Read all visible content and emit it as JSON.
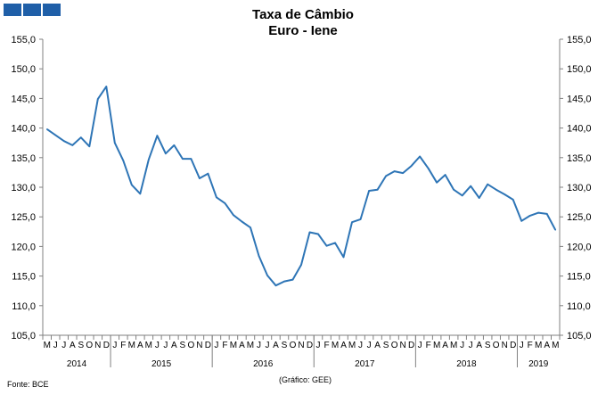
{
  "title": "Taxa de Câmbio",
  "subtitle": "Euro - Iene",
  "source": "Fonte: BCE",
  "credit": "(Gráfico:  GEE)",
  "colors": {
    "line": "#2e75b6",
    "logo": "#1f5fa8",
    "axis": "#808080"
  },
  "chart_data": {
    "type": "line",
    "title": "Taxa de Câmbio",
    "subtitle": "Euro - Iene",
    "ylim": [
      105,
      155
    ],
    "ystep": 5,
    "y_ticks": [
      "105,0",
      "110,0",
      "115,0",
      "120,0",
      "125,0",
      "130,0",
      "135,0",
      "140,0",
      "145,0",
      "150,0",
      "155,0"
    ],
    "grid": false,
    "legend": "none",
    "x_month_labels": [
      "M",
      "J",
      "J",
      "A",
      "S",
      "O",
      "N",
      "D",
      "J",
      "F",
      "M",
      "A",
      "M",
      "J",
      "J",
      "A",
      "S",
      "O",
      "N",
      "D",
      "J",
      "F",
      "M",
      "A",
      "M",
      "J",
      "J",
      "A",
      "S",
      "O",
      "N",
      "D",
      "J",
      "F",
      "M",
      "A",
      "M",
      "J",
      "J",
      "A",
      "S",
      "O",
      "N",
      "D",
      "J",
      "F",
      "M",
      "A",
      "M",
      "J",
      "J",
      "A",
      "S",
      "O",
      "N",
      "D",
      "J",
      "F",
      "M",
      "A",
      "M"
    ],
    "years": [
      {
        "label": "2014",
        "start": 0,
        "count": 8
      },
      {
        "label": "2015",
        "start": 8,
        "count": 12
      },
      {
        "label": "2016",
        "start": 20,
        "count": 12
      },
      {
        "label": "2017",
        "start": 32,
        "count": 12
      },
      {
        "label": "2018",
        "start": 44,
        "count": 12
      },
      {
        "label": "2019",
        "start": 56,
        "count": 5
      }
    ],
    "series": [
      {
        "values": [
          139.8,
          138.8,
          137.8,
          137.1,
          138.4,
          136.9,
          144.9,
          147.0,
          137.5,
          134.5,
          130.4,
          128.9,
          134.7,
          138.7,
          135.7,
          137.1,
          134.8,
          134.8,
          131.5,
          132.3,
          128.3,
          127.3,
          125.3,
          124.2,
          123.2,
          118.4,
          115.1,
          113.4,
          114.1,
          114.4,
          116.9,
          122.4,
          122.1,
          120.1,
          120.6,
          118.2,
          124.1,
          124.6,
          129.4,
          129.6,
          131.9,
          132.7,
          132.4,
          133.6,
          135.2,
          133.2,
          130.8,
          132.1,
          129.6,
          128.6,
          130.2,
          128.2,
          130.5,
          129.6,
          128.8,
          127.9,
          124.3,
          125.2,
          125.7,
          125.5,
          122.8
        ]
      }
    ]
  }
}
